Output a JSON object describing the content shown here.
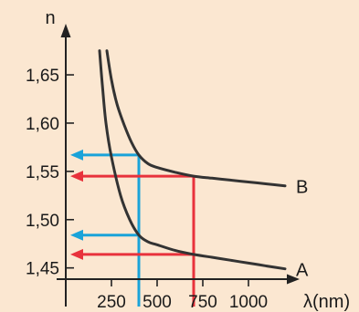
{
  "chart_data": {
    "type": "line",
    "xlabel": "λ(nm)",
    "ylabel": "n",
    "x_ticks": [
      {
        "value": 250,
        "label": "250"
      },
      {
        "value": 500,
        "label": "500"
      },
      {
        "value": 750,
        "label": "750"
      },
      {
        "value": 1000,
        "label": "1000"
      }
    ],
    "y_ticks": [
      {
        "value": 1.45,
        "label": "1,45"
      },
      {
        "value": 1.5,
        "label": "1,50"
      },
      {
        "value": 1.55,
        "label": "1,55"
      },
      {
        "value": 1.6,
        "label": "1,60"
      },
      {
        "value": 1.65,
        "label": "1,65"
      }
    ],
    "xlim": [
      0,
      1250
    ],
    "ylim": [
      1.41,
      1.685
    ],
    "grid": false,
    "series": [
      {
        "name": "A",
        "color": "#333333",
        "points": [
          [
            185,
            1.675
          ],
          [
            200,
            1.64
          ],
          [
            220,
            1.6
          ],
          [
            250,
            1.565
          ],
          [
            300,
            1.525
          ],
          [
            350,
            1.5
          ],
          [
            400,
            1.484
          ],
          [
            450,
            1.477
          ],
          [
            500,
            1.474
          ],
          [
            600,
            1.468
          ],
          [
            700,
            1.464
          ],
          [
            800,
            1.461
          ],
          [
            900,
            1.458
          ],
          [
            1000,
            1.455
          ],
          [
            1100,
            1.452
          ],
          [
            1200,
            1.449
          ]
        ]
      },
      {
        "name": "B",
        "color": "#333333",
        "points": [
          [
            225,
            1.675
          ],
          [
            250,
            1.645
          ],
          [
            280,
            1.62
          ],
          [
            320,
            1.598
          ],
          [
            360,
            1.58
          ],
          [
            400,
            1.567
          ],
          [
            450,
            1.558
          ],
          [
            500,
            1.554
          ],
          [
            600,
            1.549
          ],
          [
            700,
            1.545
          ],
          [
            800,
            1.543
          ],
          [
            900,
            1.541
          ],
          [
            1000,
            1.539
          ],
          [
            1100,
            1.537
          ],
          [
            1200,
            1.535
          ]
        ]
      }
    ],
    "annotations": [
      {
        "color": "#1aa3d9",
        "x": 400,
        "levels": [
          1.567,
          1.484
        ]
      },
      {
        "color": "#e8323c",
        "x": 700,
        "levels": [
          1.545,
          1.464
        ]
      }
    ]
  }
}
